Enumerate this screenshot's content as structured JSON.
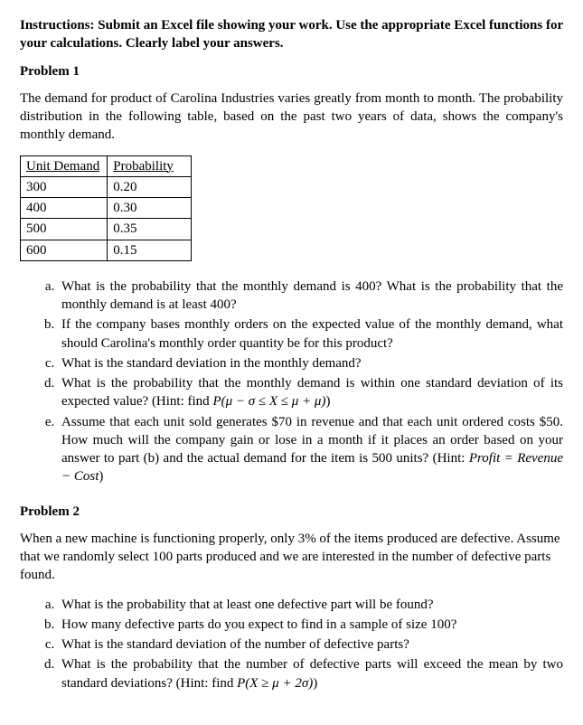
{
  "instructions": "Instructions: Submit an Excel file showing your work. Use the appropriate Excel functions for your calculations. Clearly label your answers.",
  "problem1": {
    "title": "Problem 1",
    "intro": "The demand for product of Carolina Industries varies greatly from month to month. The probability distribution in the following table, based on the past two years of data, shows the company's monthly demand.",
    "table": {
      "columns": [
        "Unit Demand",
        "Probability"
      ],
      "rows": [
        [
          "300",
          "0.20"
        ],
        [
          "400",
          "0.30"
        ],
        [
          "500",
          "0.35"
        ],
        [
          "600",
          "0.15"
        ]
      ]
    },
    "items": {
      "a": "What is the probability that the monthly demand is 400? What is the probability that the monthly demand is at least 400?",
      "b": "If the company bases monthly orders on the expected value of the monthly demand, what should Carolina's monthly order quantity be for this product?",
      "c": "What is the standard deviation in the monthly demand?",
      "d_pre": "What is the probability that the monthly demand is within one standard deviation of its expected value? (Hint: find ",
      "d_math": "P(μ − σ ≤ X ≤ μ + μ)",
      "d_post": ")",
      "e_pre": "Assume that each unit sold generates $70 in revenue and that each unit ordered costs $50. How much will the company gain or lose in a month if it places an order based on your answer to part (b) and the actual demand for the item is 500 units? (Hint: ",
      "e_math": "Profit = Revenue − Cost",
      "e_post": ")"
    }
  },
  "problem2": {
    "title": "Problem 2",
    "intro": "When a new machine is functioning properly, only 3% of the items produced are defective. Assume that we randomly select 100 parts produced and we are interested in the number of defective parts found.",
    "items": {
      "a": "What is the probability that at least one defective part will be found?",
      "b": "How many defective parts do you expect to find in a sample of size 100?",
      "c": "What is the standard deviation of the number of defective parts?",
      "d_pre": "What is the probability that the number of defective parts will exceed the mean by two standard deviations? (Hint: find ",
      "d_math": "P(X ≥ μ + 2σ)",
      "d_post": ")"
    }
  }
}
